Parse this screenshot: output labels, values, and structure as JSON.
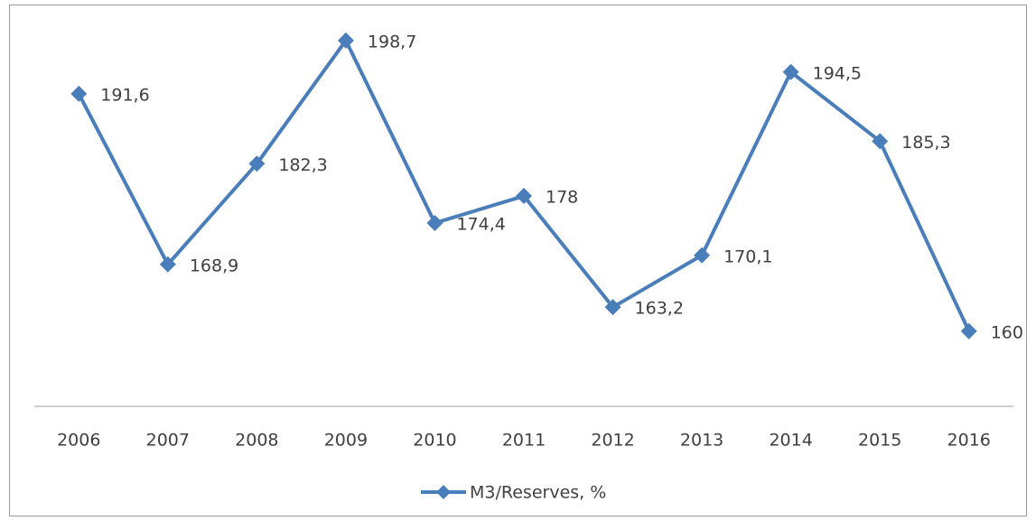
{
  "chart_data": {
    "type": "line",
    "categories": [
      "2006",
      "2007",
      "2008",
      "2009",
      "2010",
      "2011",
      "2012",
      "2013",
      "2014",
      "2015",
      "2016"
    ],
    "series": [
      {
        "name": "M3/Reserves, %",
        "color": "#4a7ebb",
        "values": [
          191.6,
          168.9,
          182.3,
          198.7,
          174.4,
          178,
          163.2,
          170.1,
          194.5,
          185.3,
          160
        ],
        "value_labels": [
          "191,6",
          "168,9",
          "182,3",
          "198,7",
          "174,4",
          "178",
          "163,2",
          "170,1",
          "194,5",
          "185,3",
          "160"
        ]
      }
    ],
    "ylim": [
      150,
      202
    ],
    "legend": "bottom"
  }
}
